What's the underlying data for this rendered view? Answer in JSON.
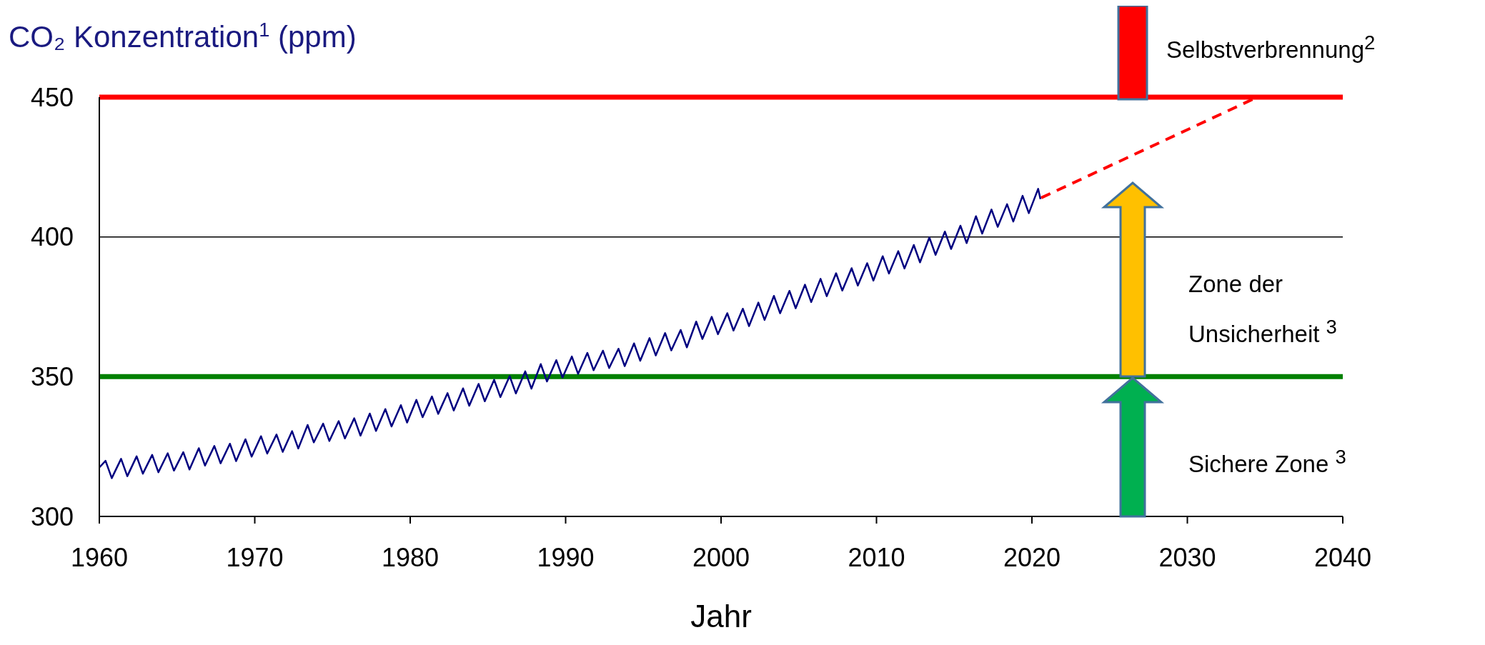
{
  "chart_data": {
    "type": "line",
    "ylabel": "CO₂ Konzentration$^{1}$ (ppm)",
    "xlabel": "Jahr",
    "xlim": [
      1960,
      2040
    ],
    "xticks": [
      1960,
      1970,
      1980,
      1990,
      2000,
      2010,
      2020,
      2030,
      2040
    ],
    "ylim": [
      300,
      450
    ],
    "yticks": [
      300,
      350,
      400,
      450
    ],
    "marker": "none",
    "series": [
      {
        "color": "#000080",
        "line_style": "solid",
        "x": [
          1960,
          1960.4,
          1960.8,
          1961.4,
          1961.8,
          1962.4,
          1962.8,
          1963.4,
          1963.8,
          1964.4,
          1964.8,
          1965.4,
          1965.8,
          1966.4,
          1966.8,
          1967.4,
          1967.8,
          1968.4,
          1968.8,
          1969.4,
          1969.8,
          1970.4,
          1970.8,
          1971.4,
          1971.8,
          1972.4,
          1972.8,
          1973.4,
          1973.8,
          1974.4,
          1974.8,
          1975.4,
          1975.8,
          1976.4,
          1976.8,
          1977.4,
          1977.8,
          1978.4,
          1978.8,
          1979.4,
          1979.8,
          1980.4,
          1980.8,
          1981.4,
          1981.8,
          1982.4,
          1982.8,
          1983.4,
          1983.8,
          1984.4,
          1984.8,
          1985.4,
          1985.8,
          1986.4,
          1986.8,
          1987.4,
          1987.8,
          1988.4,
          1988.8,
          1989.4,
          1989.8,
          1990.4,
          1990.8,
          1991.4,
          1991.8,
          1992.4,
          1992.8,
          1993.4,
          1993.8,
          1994.4,
          1994.8,
          1995.4,
          1995.8,
          1996.4,
          1996.8,
          1997.4,
          1997.8,
          1998.4,
          1998.8,
          1999.4,
          1999.8,
          2000.4,
          2000.8,
          2001.4,
          2001.8,
          2002.4,
          2002.8,
          2003.4,
          2003.8,
          2004.4,
          2004.8,
          2005.4,
          2005.8,
          2006.4,
          2006.8,
          2007.4,
          2007.8,
          2008.4,
          2008.8,
          2009.4,
          2009.8,
          2010.4,
          2010.8,
          2011.4,
          2011.8,
          2012.4,
          2012.8,
          2013.4,
          2013.8,
          2014.4,
          2014.8,
          2015.4,
          2015.8,
          2016.4,
          2016.8,
          2017.4,
          2017.8,
          2018.4,
          2018.8,
          2019.4,
          2019.8,
          2020.4,
          2020.55
        ],
        "values": [
          317.5,
          319.9,
          313.7,
          320.6,
          314.4,
          321.5,
          315.3,
          322.0,
          315.8,
          322.6,
          316.4,
          323.0,
          316.8,
          324.4,
          318.2,
          325.2,
          319.0,
          326.0,
          319.8,
          327.6,
          321.4,
          328.7,
          322.5,
          329.3,
          323.1,
          330.5,
          324.3,
          332.7,
          326.5,
          333.2,
          327.0,
          334.1,
          327.9,
          335.1,
          328.9,
          336.8,
          330.6,
          338.4,
          332.2,
          339.8,
          333.6,
          341.7,
          335.5,
          342.9,
          336.7,
          344.1,
          337.9,
          345.8,
          339.6,
          347.4,
          341.2,
          348.9,
          342.7,
          350.2,
          344.0,
          351.9,
          345.7,
          354.5,
          348.3,
          355.9,
          349.7,
          357.2,
          351.0,
          358.5,
          352.3,
          359.3,
          353.1,
          360.0,
          353.8,
          361.9,
          355.7,
          363.8,
          357.6,
          365.6,
          359.4,
          366.7,
          360.5,
          369.7,
          363.5,
          371.4,
          365.2,
          372.7,
          366.5,
          374.3,
          368.1,
          376.5,
          370.3,
          378.9,
          372.7,
          380.7,
          374.5,
          382.9,
          376.7,
          385.0,
          378.8,
          387.0,
          380.8,
          388.8,
          382.6,
          390.6,
          384.4,
          393.1,
          386.9,
          394.9,
          388.7,
          397.1,
          390.9,
          399.8,
          393.6,
          401.9,
          395.7,
          404.0,
          397.8,
          407.4,
          401.2,
          409.8,
          403.6,
          411.7,
          405.5,
          414.7,
          408.5,
          417.2,
          413.5
        ]
      },
      {
        "color": "#ff0000",
        "line_style": "dashed",
        "x": [
          2020.6,
          2034.5
        ],
        "values": [
          414,
          450
        ]
      }
    ],
    "ref_lines": [
      {
        "axis": "y",
        "value": 450,
        "color": "#ff0000"
      },
      {
        "axis": "y",
        "value": 400,
        "color": "#000000"
      },
      {
        "axis": "y",
        "value": 350,
        "color": "#008000"
      }
    ],
    "annotations": [
      "Selbstverbrennung$^{2}$",
      "Zone der Unsicherheit $^{3}$",
      "Sichere Zone $^{3}$"
    ]
  }
}
